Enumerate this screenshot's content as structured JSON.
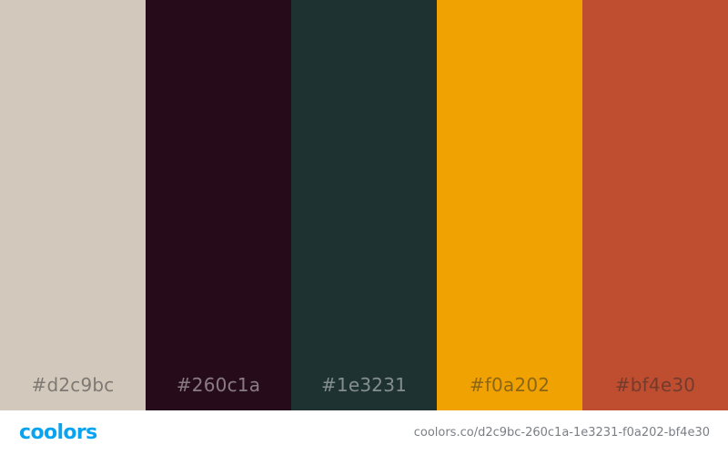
{
  "palette": {
    "swatches": [
      {
        "hex": "#d2c9bc",
        "label": "#d2c9bc",
        "tone": "light"
      },
      {
        "hex": "#260c1a",
        "label": "#260c1a",
        "tone": "dark"
      },
      {
        "hex": "#1e3231",
        "label": "#1e3231",
        "tone": "dark"
      },
      {
        "hex": "#f0a202",
        "label": "#f0a202",
        "tone": "light"
      },
      {
        "hex": "#bf4e30",
        "label": "#bf4e30",
        "tone": "light"
      }
    ]
  },
  "footer": {
    "logo_text": "coolors",
    "logo_color": "#0aa3ef",
    "url": "coolors.co/d2c9bc-260c1a-1e3231-f0a202-bf4e30"
  }
}
